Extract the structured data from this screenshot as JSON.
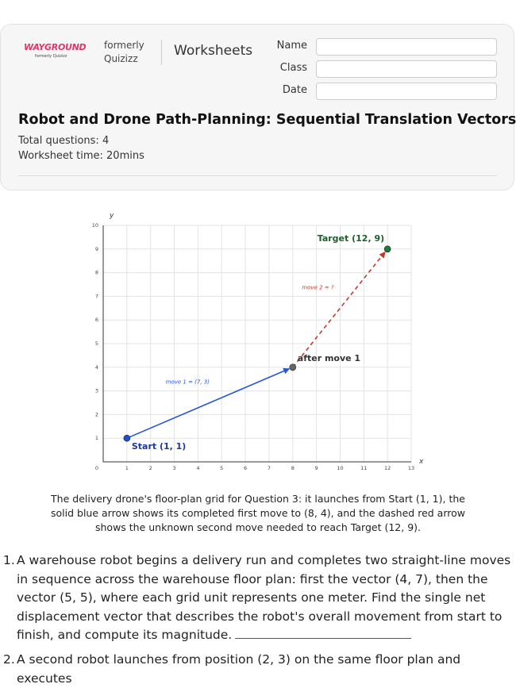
{
  "header": {
    "logo": "WAYGROUND",
    "logo_subtitle": "formerly Quizizz",
    "formerly": "formerly",
    "formerly_name": "Quizizz",
    "section": "Worksheets",
    "fields": [
      "Name",
      "Class",
      "Date"
    ]
  },
  "worksheet": {
    "title": "Robot and Drone Path-Planning: Sequential Translation Vectors",
    "total_questions": "Total questions: 4",
    "time": "Worksheet time: 20mins"
  },
  "figure": {
    "x_label": "x",
    "y_label": "y",
    "xlim": [
      0,
      13
    ],
    "ylim": [
      0,
      10
    ],
    "xticks": [
      0,
      1,
      2,
      3,
      4,
      5,
      6,
      7,
      8,
      9,
      10,
      11,
      12,
      13
    ],
    "yticks": [
      1,
      2,
      3,
      4,
      5,
      6,
      7,
      8,
      9,
      10
    ],
    "points": [
      {
        "label": "Start (1, 1)",
        "x": 1,
        "y": 1,
        "color": "#1f4fd1",
        "label_color": "#1a3a9c"
      },
      {
        "label": "after move 1",
        "x": 8,
        "y": 4,
        "color": "#666666",
        "label_color": "#333333"
      },
      {
        "label": "Target (12, 9)",
        "x": 12,
        "y": 9,
        "color": "#1e7a3a",
        "label_color": "#1d5e2c"
      }
    ],
    "moves": [
      {
        "label": "move 1 = (7, 3)",
        "color": "#2456d6",
        "dashed": false
      },
      {
        "label": "move 2 = ?",
        "color": "#c0392b",
        "dashed": true
      }
    ],
    "caption": "The delivery drone's floor-plan grid for Question 3: it launches from Start (1, 1), the solid blue arrow shows its completed first move to (8, 4), and the dashed red arrow shows the unknown second move needed to reach Target (12, 9)."
  },
  "questions": [
    {
      "number": "1.",
      "text": "A warehouse robot begins a delivery run and completes two straight-line moves in sequence across the warehouse floor plan: first the vector (4, 7), then the vector (5, 5), where each grid unit represents one meter. Find the single net displacement vector that describes the robot's overall movement from start to finish, and compute its magnitude."
    },
    {
      "number": "2.",
      "text": "A second robot launches from position (2, 3) on the same floor plan and executes"
    }
  ]
}
